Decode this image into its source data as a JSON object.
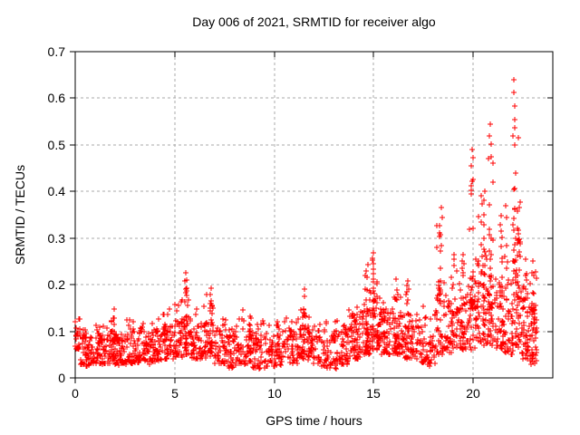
{
  "chart_data": {
    "type": "scatter",
    "title": "Day 006 of 2021, SRMTID for receiver algo",
    "xlabel": "GPS time / hours",
    "ylabel": "SRMTID / TECUs",
    "xlim": [
      0,
      24
    ],
    "ylim": [
      0,
      0.7
    ],
    "xticks": [
      0,
      5,
      10,
      15,
      20
    ],
    "yticks": [
      0,
      0.1,
      0.2,
      0.3,
      0.4,
      0.5,
      0.6,
      0.7
    ],
    "grid": true,
    "legend": "none",
    "marker": "plus",
    "marker_color": "#ff0000",
    "grid_color": "#a8a8a8",
    "border_color": "#000000",
    "background": "#ffffff",
    "seed": 20210106,
    "bands": [
      [
        0.0,
        0.25,
        22,
        0.06,
        0.125,
        0.13
      ],
      [
        0.25,
        0.75,
        45,
        0.025,
        0.085,
        0.105
      ],
      [
        0.75,
        1.25,
        45,
        0.03,
        0.09,
        0.12
      ],
      [
        1.25,
        1.75,
        45,
        0.03,
        0.09,
        0.115
      ],
      [
        1.75,
        2.1,
        35,
        0.03,
        0.1,
        0.13
      ],
      [
        2.1,
        2.6,
        45,
        0.025,
        0.085,
        0.105
      ],
      [
        2.6,
        3.2,
        50,
        0.03,
        0.1,
        0.13
      ],
      [
        3.2,
        3.8,
        50,
        0.03,
        0.095,
        0.12
      ],
      [
        3.8,
        4.4,
        50,
        0.035,
        0.1,
        0.13
      ],
      [
        4.4,
        5.0,
        55,
        0.04,
        0.11,
        0.155
      ],
      [
        5.0,
        5.4,
        40,
        0.045,
        0.12,
        0.185
      ],
      [
        5.4,
        5.75,
        32,
        0.05,
        0.125,
        0.2
      ],
      [
        5.75,
        6.3,
        45,
        0.04,
        0.11,
        0.16
      ],
      [
        6.3,
        7.0,
        55,
        0.04,
        0.12,
        0.185
      ],
      [
        7.0,
        7.6,
        50,
        0.03,
        0.1,
        0.14
      ],
      [
        7.6,
        8.2,
        50,
        0.02,
        0.09,
        0.12
      ],
      [
        8.2,
        8.9,
        50,
        0.03,
        0.1,
        0.15
      ],
      [
        8.9,
        9.6,
        50,
        0.02,
        0.09,
        0.125
      ],
      [
        9.6,
        10.4,
        55,
        0.025,
        0.09,
        0.115
      ],
      [
        10.4,
        11.2,
        55,
        0.03,
        0.1,
        0.14
      ],
      [
        11.2,
        11.7,
        38,
        0.04,
        0.11,
        0.17
      ],
      [
        11.7,
        12.4,
        50,
        0.03,
        0.1,
        0.13
      ],
      [
        12.4,
        13.1,
        50,
        0.02,
        0.09,
        0.12
      ],
      [
        13.1,
        13.7,
        50,
        0.03,
        0.1,
        0.14
      ],
      [
        13.7,
        14.4,
        55,
        0.04,
        0.12,
        0.17
      ],
      [
        14.4,
        14.8,
        40,
        0.05,
        0.15,
        0.22
      ],
      [
        14.8,
        15.2,
        42,
        0.06,
        0.16,
        0.245
      ],
      [
        15.2,
        15.8,
        60,
        0.05,
        0.14,
        0.19
      ],
      [
        15.8,
        16.5,
        65,
        0.05,
        0.13,
        0.18
      ],
      [
        16.5,
        17.2,
        60,
        0.04,
        0.12,
        0.17
      ],
      [
        17.2,
        17.8,
        38,
        0.03,
        0.11,
        0.2
      ],
      [
        17.8,
        18.1,
        18,
        0.03,
        0.1,
        0.14
      ],
      [
        18.1,
        18.6,
        45,
        0.05,
        0.19,
        0.33
      ],
      [
        18.6,
        19.2,
        45,
        0.05,
        0.16,
        0.27
      ],
      [
        19.2,
        19.7,
        40,
        0.06,
        0.17,
        0.3
      ],
      [
        19.7,
        20.2,
        48,
        0.06,
        0.21,
        0.43
      ],
      [
        20.2,
        20.6,
        45,
        0.07,
        0.24,
        0.4
      ],
      [
        20.6,
        21.1,
        48,
        0.07,
        0.26,
        0.5
      ],
      [
        21.1,
        21.6,
        45,
        0.06,
        0.21,
        0.36
      ],
      [
        21.6,
        22.0,
        40,
        0.05,
        0.19,
        0.34
      ],
      [
        22.0,
        22.4,
        48,
        0.07,
        0.3,
        0.55
      ],
      [
        22.4,
        22.8,
        40,
        0.04,
        0.17,
        0.28
      ],
      [
        22.8,
        23.2,
        45,
        0.03,
        0.15,
        0.24
      ]
    ],
    "streaks": [
      [
        1.95,
        0.04,
        0.145,
        12
      ],
      [
        5.55,
        0.06,
        0.22,
        13
      ],
      [
        6.8,
        0.05,
        0.19,
        13
      ],
      [
        8.8,
        0.04,
        0.15,
        10
      ],
      [
        10.2,
        0.04,
        0.13,
        9
      ],
      [
        11.5,
        0.05,
        0.185,
        12
      ],
      [
        13.9,
        0.05,
        0.16,
        10
      ],
      [
        14.65,
        0.06,
        0.235,
        13
      ],
      [
        15.0,
        0.07,
        0.26,
        15
      ],
      [
        16.15,
        0.06,
        0.215,
        8
      ],
      [
        16.7,
        0.06,
        0.26,
        9
      ],
      [
        18.35,
        0.06,
        0.355,
        15
      ],
      [
        19.0,
        0.06,
        0.275,
        12
      ],
      [
        19.5,
        0.07,
        0.295,
        12
      ],
      [
        19.95,
        0.08,
        0.47,
        15
      ],
      [
        20.5,
        0.08,
        0.39,
        12
      ],
      [
        20.85,
        0.09,
        0.53,
        15
      ],
      [
        21.4,
        0.07,
        0.35,
        12
      ],
      [
        22.05,
        0.08,
        0.6,
        17
      ],
      [
        22.3,
        0.06,
        0.33,
        12
      ],
      [
        22.7,
        0.04,
        0.25,
        12
      ],
      [
        23.05,
        0.03,
        0.24,
        12
      ]
    ],
    "outliers": [
      [
        22.03,
        0.639
      ],
      [
        22.05,
        0.613
      ],
      [
        20.85,
        0.545
      ],
      [
        20.8,
        0.52
      ],
      [
        20.9,
        0.502
      ],
      [
        20.78,
        0.47
      ],
      [
        19.95,
        0.49
      ],
      [
        19.98,
        0.472
      ],
      [
        19.9,
        0.455
      ],
      [
        22.0,
        0.52
      ],
      [
        22.08,
        0.5
      ],
      [
        22.12,
        0.44
      ],
      [
        21.0,
        0.42
      ],
      [
        20.6,
        0.4
      ],
      [
        20.4,
        0.39
      ],
      [
        18.4,
        0.365
      ],
      [
        18.45,
        0.345
      ],
      [
        15.0,
        0.268
      ],
      [
        14.93,
        0.252
      ],
      [
        14.7,
        0.243
      ],
      [
        5.55,
        0.226
      ],
      [
        5.58,
        0.21
      ],
      [
        6.85,
        0.192
      ],
      [
        11.5,
        0.19
      ],
      [
        1.95,
        0.148
      ],
      [
        17.8,
        0.025
      ],
      [
        23.0,
        0.25
      ],
      [
        22.95,
        0.225
      ],
      [
        21.65,
        0.37
      ],
      [
        21.7,
        0.345
      ]
    ]
  }
}
